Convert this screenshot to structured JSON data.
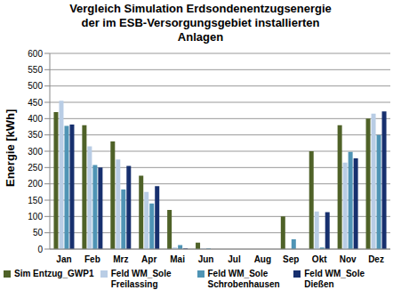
{
  "chart_data": {
    "type": "bar",
    "title": "Vergleich Simulation Erdsondenentzugsenergie\nder im ESB-Versorgungsgebiet installierten\nAnlagen",
    "y_label": "Energie [kWh]",
    "categories": [
      "Jan",
      "Feb",
      "Mrz",
      "Apr",
      "Mai",
      "Jun",
      "Jul",
      "Aug",
      "Sep",
      "Okt",
      "Nov",
      "Dez"
    ],
    "series": [
      {
        "name": "Sim Entzug_GWP1",
        "color": "#4f6228",
        "values": [
          420,
          380,
          330,
          225,
          120,
          20,
          0,
          0,
          100,
          300,
          380,
          400
        ]
      },
      {
        "name": "Feld WM_Sole Freilassing",
        "color": "#b9cde5",
        "values": [
          455,
          315,
          275,
          175,
          5,
          2,
          0,
          0,
          0,
          115,
          265,
          415
        ]
      },
      {
        "name": "Feld WM_Sole Schrobenhausen",
        "color": "#4f94b5",
        "values": [
          378,
          258,
          183,
          140,
          12,
          2,
          0,
          0,
          30,
          5,
          298,
          350
        ]
      },
      {
        "name": "Feld WM_Sole Dießen",
        "color": "#17306e",
        "values": [
          382,
          250,
          255,
          193,
          2,
          0,
          0,
          0,
          0,
          113,
          278,
          422
        ]
      }
    ],
    "ylim": [
      0,
      600
    ],
    "yticks": [
      0,
      50,
      100,
      150,
      200,
      250,
      300,
      350,
      400,
      450,
      500,
      550,
      600
    ],
    "grid": true,
    "legend": "bottom"
  }
}
